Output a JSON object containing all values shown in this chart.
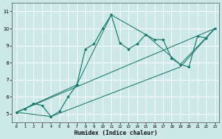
{
  "xlabel": "Humidex (Indice chaleur)",
  "ylabel": "",
  "xlim": [
    -0.5,
    23.5
  ],
  "ylim": [
    4.5,
    11.5
  ],
  "xticks": [
    0,
    1,
    2,
    3,
    4,
    5,
    6,
    7,
    8,
    9,
    10,
    11,
    12,
    13,
    14,
    15,
    16,
    17,
    18,
    19,
    20,
    21,
    22,
    23
  ],
  "yticks": [
    5,
    6,
    7,
    8,
    9,
    10,
    11
  ],
  "bg_color": "#cce8e8",
  "grid_color": "#ffffff",
  "line_color": "#1a7a6e",
  "line_main": {
    "x": [
      0,
      1,
      2,
      3,
      4,
      5,
      6,
      7,
      8,
      9,
      10,
      11,
      12,
      13,
      14,
      15,
      16,
      17,
      18,
      19,
      20,
      21,
      22,
      23
    ],
    "y": [
      5.1,
      5.3,
      5.6,
      5.5,
      4.85,
      5.15,
      6.0,
      6.7,
      8.8,
      9.1,
      10.0,
      10.8,
      9.15,
      8.8,
      9.1,
      9.65,
      9.35,
      9.35,
      8.25,
      7.9,
      7.75,
      9.55,
      9.45,
      10.0
    ]
  },
  "line_trend1": {
    "x": [
      0,
      23
    ],
    "y": [
      5.1,
      10.0
    ]
  },
  "line_trend2": {
    "x": [
      0,
      4,
      12,
      19,
      23
    ],
    "y": [
      5.1,
      4.85,
      6.4,
      7.75,
      10.0
    ]
  },
  "line_trend3": {
    "x": [
      0,
      7,
      11,
      15,
      19,
      23
    ],
    "y": [
      5.1,
      6.7,
      10.8,
      9.65,
      7.9,
      10.0
    ]
  }
}
